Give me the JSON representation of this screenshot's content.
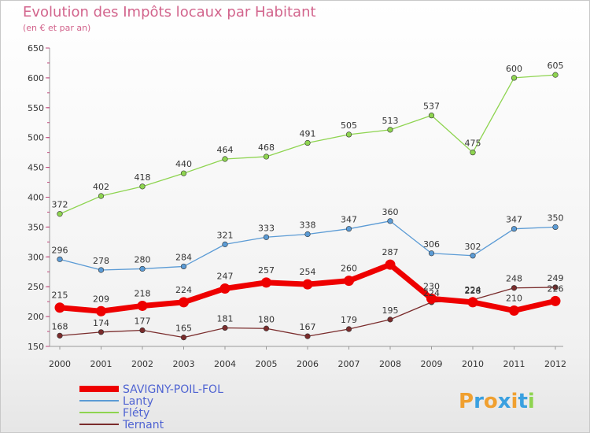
{
  "header": {
    "title": "Evolution des Impôts locaux par Habitant",
    "subtitle": "(en € et par an)"
  },
  "logo": {
    "text": "Proxiti"
  },
  "chart_data": {
    "type": "line",
    "title": "Evolution des Impôts locaux par Habitant",
    "subtitle": "(en € et par an)",
    "xlabel": "",
    "ylabel": "",
    "ylim": [
      150,
      650
    ],
    "yticks": [
      150,
      200,
      250,
      300,
      350,
      400,
      450,
      500,
      550,
      600,
      650
    ],
    "grid": false,
    "legend_position": "bottom-left",
    "x": [
      "2000",
      "2001",
      "2002",
      "2003",
      "2004",
      "2005",
      "2006",
      "2007",
      "2008",
      "2009",
      "2010",
      "2011",
      "2012"
    ],
    "series": [
      {
        "name": "Fléty",
        "color": "#8ed450",
        "values": [
          372,
          402,
          418,
          440,
          464,
          468,
          491,
          505,
          513,
          537,
          475,
          600,
          605
        ]
      },
      {
        "name": "Lanty",
        "color": "#5b9bd5",
        "values": [
          296,
          278,
          280,
          284,
          321,
          333,
          338,
          347,
          360,
          306,
          302,
          347,
          350
        ]
      },
      {
        "name": "Ternant",
        "color": "#7a2c2c",
        "values": [
          168,
          174,
          177,
          165,
          181,
          180,
          167,
          179,
          195,
          224,
          228,
          248,
          249
        ]
      },
      {
        "name": "SAVIGNY-POIL-FOL",
        "color": "#ee0000",
        "values": [
          215,
          209,
          218,
          224,
          247,
          257,
          254,
          260,
          287,
          230,
          224,
          210,
          226
        ]
      }
    ],
    "legend_order": [
      "SAVIGNY-POIL-FOL",
      "Lanty",
      "Fléty",
      "Ternant"
    ]
  }
}
